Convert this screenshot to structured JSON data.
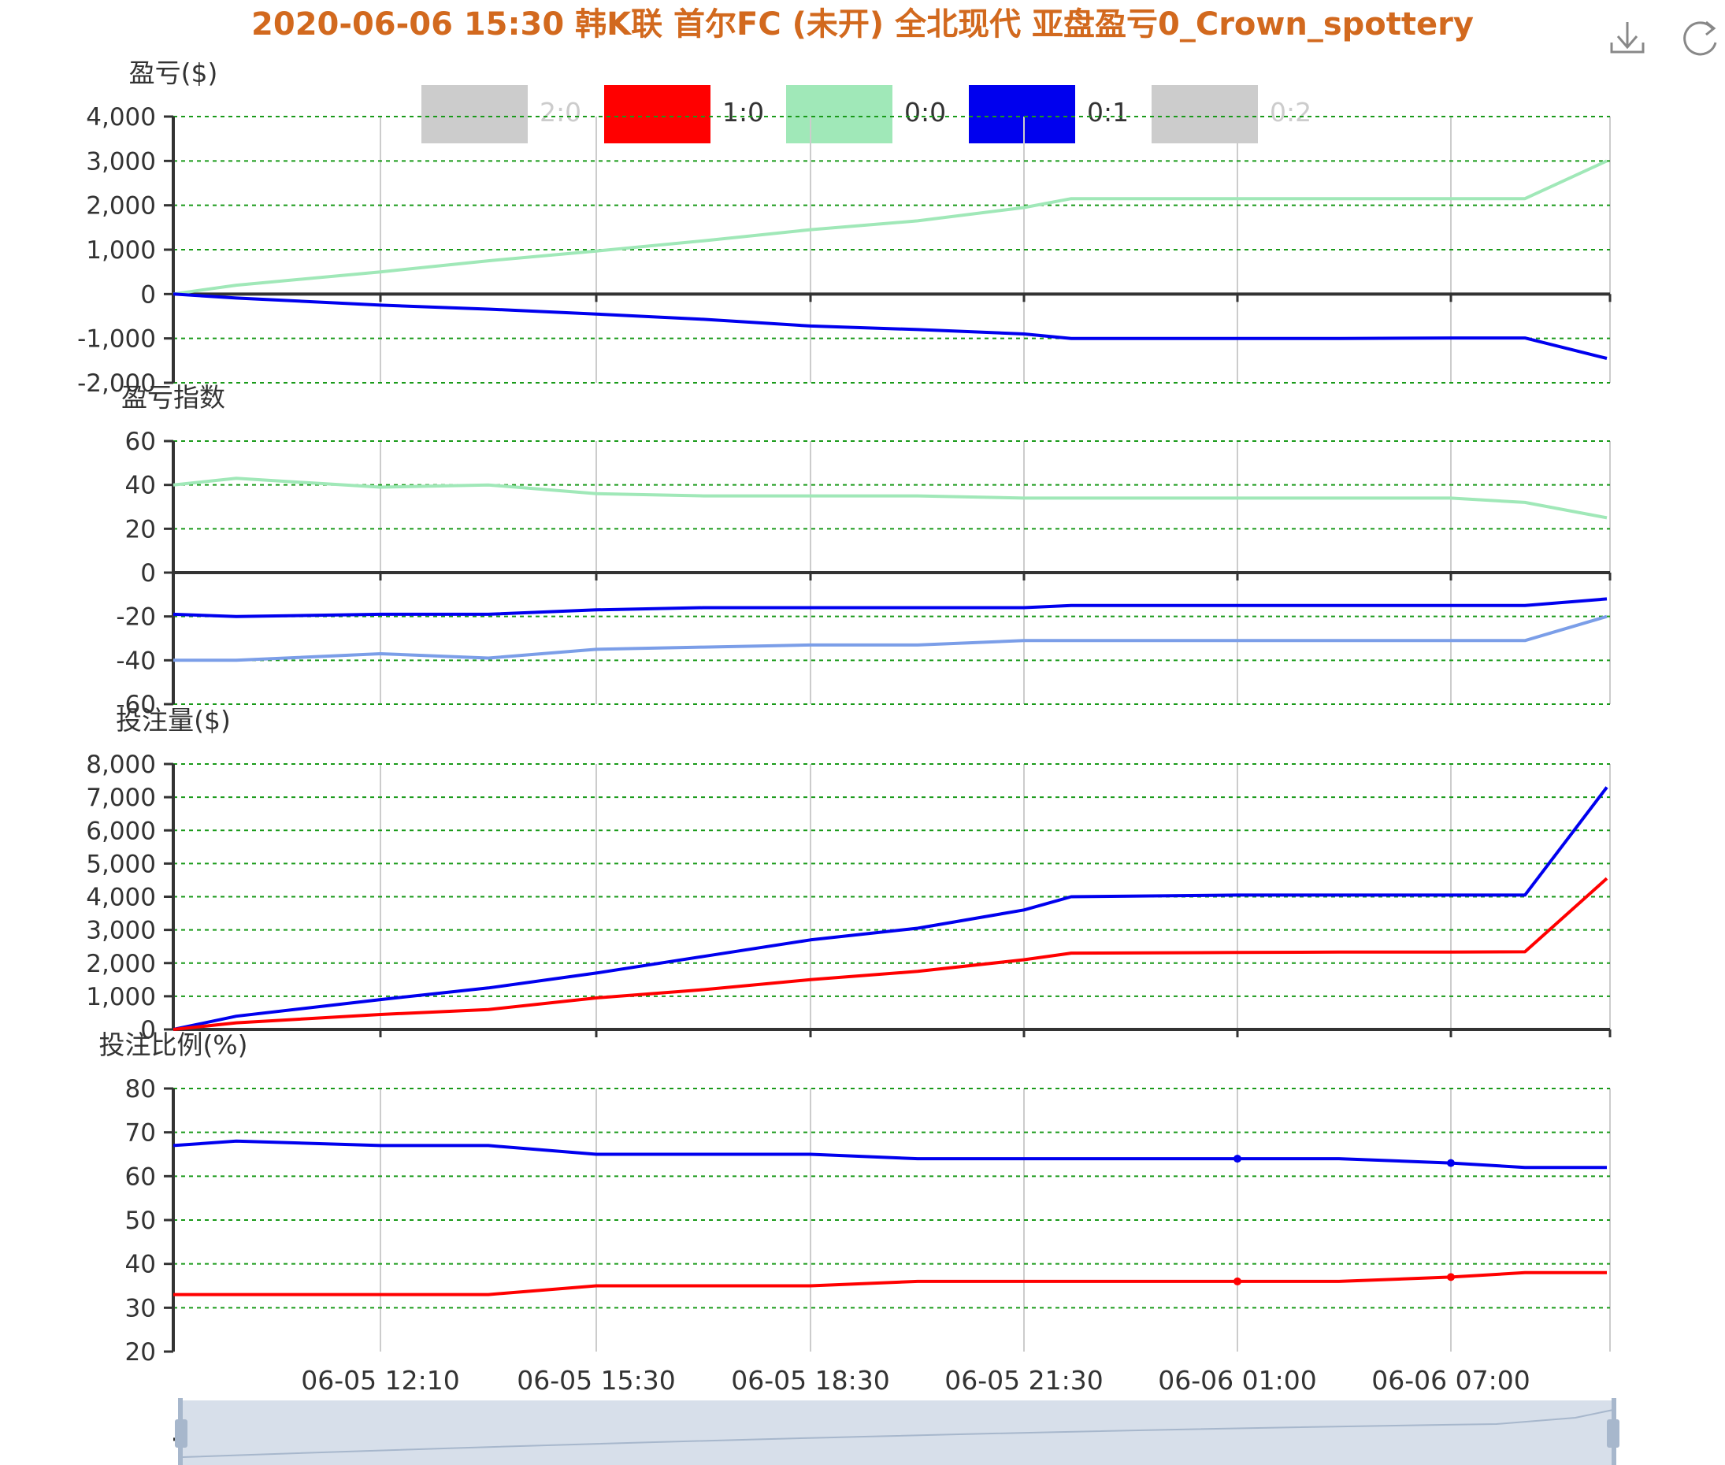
{
  "title": "2020-06-06 15:30 韩K联 首尔FC (未开) 全北现代 亚盘盈亏0_Crown_spottery",
  "toolbox": {
    "download_icon": "download-icon",
    "refresh_icon": "refresh-icon"
  },
  "legend": [
    {
      "label": "2:0",
      "color": "#cccccc",
      "active": false
    },
    {
      "label": "1:0",
      "color": "#ff0000",
      "active": true
    },
    {
      "label": "0:0",
      "color": "#a0e8b8",
      "active": true
    },
    {
      "label": "0:1",
      "color": "#0000ee",
      "active": true
    },
    {
      "label": "0:2",
      "color": "#cccccc",
      "active": false
    }
  ],
  "colors": {
    "grid": "#1a9a1a",
    "axis": "#333333",
    "red": "#ff0000",
    "green": "#a0e8b8",
    "blue": "#0000ee",
    "lightblue": "#7b9ee8",
    "zoom_fill": "#d7dfea",
    "zoom_handle": "#a7b7cc"
  },
  "chart_data": [
    {
      "type": "line",
      "ylabel": "盈亏($)",
      "ylim": [
        -2000,
        4000
      ],
      "yticks": [
        "4,000",
        "3,000",
        "2,000",
        "1,000",
        "0",
        "-1,000",
        "-2,000"
      ],
      "x": [
        "06-05 09:10",
        "06-05 10:00",
        "06-05 12:10",
        "06-05 13:30",
        "06-05 15:30",
        "06-05 17:00",
        "06-05 18:30",
        "06-05 20:00",
        "06-05 21:30",
        "06-05 22:30",
        "06-06 01:00",
        "06-06 03:00",
        "06-06 07:00",
        "06-06 08:30",
        "06-06 09:20"
      ],
      "series": [
        {
          "name": "0:0",
          "color": "#a0e8b8",
          "values": [
            0,
            200,
            500,
            750,
            970,
            1200,
            1450,
            1650,
            1950,
            2150,
            2150,
            2150,
            2150,
            2150,
            3000
          ]
        },
        {
          "name": "0:1",
          "color": "#0000ee",
          "values": [
            0,
            -90,
            -250,
            -340,
            -450,
            -570,
            -720,
            -800,
            -900,
            -1000,
            -1000,
            -1000,
            -990,
            -990,
            -1450
          ]
        }
      ]
    },
    {
      "type": "line",
      "ylabel": "盈亏指数",
      "ylim": [
        -60,
        60
      ],
      "yticks": [
        "60",
        "40",
        "20",
        "0",
        "-20",
        "-40",
        "-60"
      ],
      "x": [
        "06-05 09:10",
        "06-05 10:00",
        "06-05 12:10",
        "06-05 13:30",
        "06-05 15:30",
        "06-05 17:00",
        "06-05 18:30",
        "06-05 20:00",
        "06-05 21:30",
        "06-05 22:30",
        "06-06 01:00",
        "06-06 03:00",
        "06-06 07:00",
        "06-06 08:30",
        "06-06 09:20"
      ],
      "series": [
        {
          "color": "#a0e8b8",
          "values": [
            40,
            43,
            39,
            40,
            36,
            35,
            35,
            35,
            34,
            34,
            34,
            34,
            34,
            32,
            25
          ]
        },
        {
          "color": "#0000ee",
          "values": [
            -19,
            -20,
            -19,
            -19,
            -17,
            -16,
            -16,
            -16,
            -16,
            -15,
            -15,
            -15,
            -15,
            -15,
            -12
          ]
        },
        {
          "color": "#7b9ee8",
          "values": [
            -40,
            -40,
            -37,
            -39,
            -35,
            -34,
            -33,
            -33,
            -31,
            -31,
            -31,
            -31,
            -31,
            -31,
            -20
          ]
        }
      ]
    },
    {
      "type": "line",
      "ylabel": "投注量($)",
      "ylim": [
        0,
        8000
      ],
      "yticks": [
        "8,000",
        "7,000",
        "6,000",
        "5,000",
        "4,000",
        "3,000",
        "2,000",
        "1,000",
        "0"
      ],
      "x": [
        "06-05 09:10",
        "06-05 10:00",
        "06-05 12:10",
        "06-05 13:30",
        "06-05 15:30",
        "06-05 17:00",
        "06-05 18:30",
        "06-05 20:00",
        "06-05 21:30",
        "06-05 22:30",
        "06-06 01:00",
        "06-06 03:00",
        "06-06 07:00",
        "06-06 08:30",
        "06-06 09:20"
      ],
      "series": [
        {
          "name": "0:1",
          "color": "#0000ee",
          "values": [
            0,
            400,
            900,
            1250,
            1700,
            2200,
            2700,
            3050,
            3600,
            4000,
            4050,
            4050,
            4050,
            4050,
            7300
          ]
        },
        {
          "name": "1:0",
          "color": "#ff0000",
          "values": [
            0,
            200,
            450,
            600,
            950,
            1200,
            1500,
            1750,
            2100,
            2300,
            2320,
            2330,
            2330,
            2340,
            4550
          ]
        }
      ]
    },
    {
      "type": "line",
      "ylabel": "投注比例(%)",
      "ylim": [
        20,
        80
      ],
      "yticks": [
        "80",
        "70",
        "60",
        "50",
        "40",
        "30",
        "20"
      ],
      "x": [
        "06-05 09:10",
        "06-05 10:00",
        "06-05 12:10",
        "06-05 13:30",
        "06-05 15:30",
        "06-05 17:00",
        "06-05 18:30",
        "06-05 20:00",
        "06-05 21:30",
        "06-05 22:30",
        "06-06 01:00",
        "06-06 03:00",
        "06-06 07:00",
        "06-06 08:30",
        "06-06 09:20"
      ],
      "series": [
        {
          "name": "0:1",
          "color": "#0000ee",
          "values": [
            67,
            68,
            67,
            67,
            65,
            65,
            65,
            64,
            64,
            64,
            64,
            64,
            63,
            62,
            62
          ]
        },
        {
          "name": "1:0",
          "color": "#ff0000",
          "values": [
            33,
            33,
            33,
            33,
            35,
            35,
            35,
            36,
            36,
            36,
            36,
            36,
            37,
            38,
            38
          ]
        }
      ]
    }
  ],
  "xaxis_labels": [
    "06-05 12:10",
    "06-05 15:30",
    "06-05 18:30",
    "06-05 21:30",
    "06-06 01:00",
    "06-06 07:00"
  ]
}
